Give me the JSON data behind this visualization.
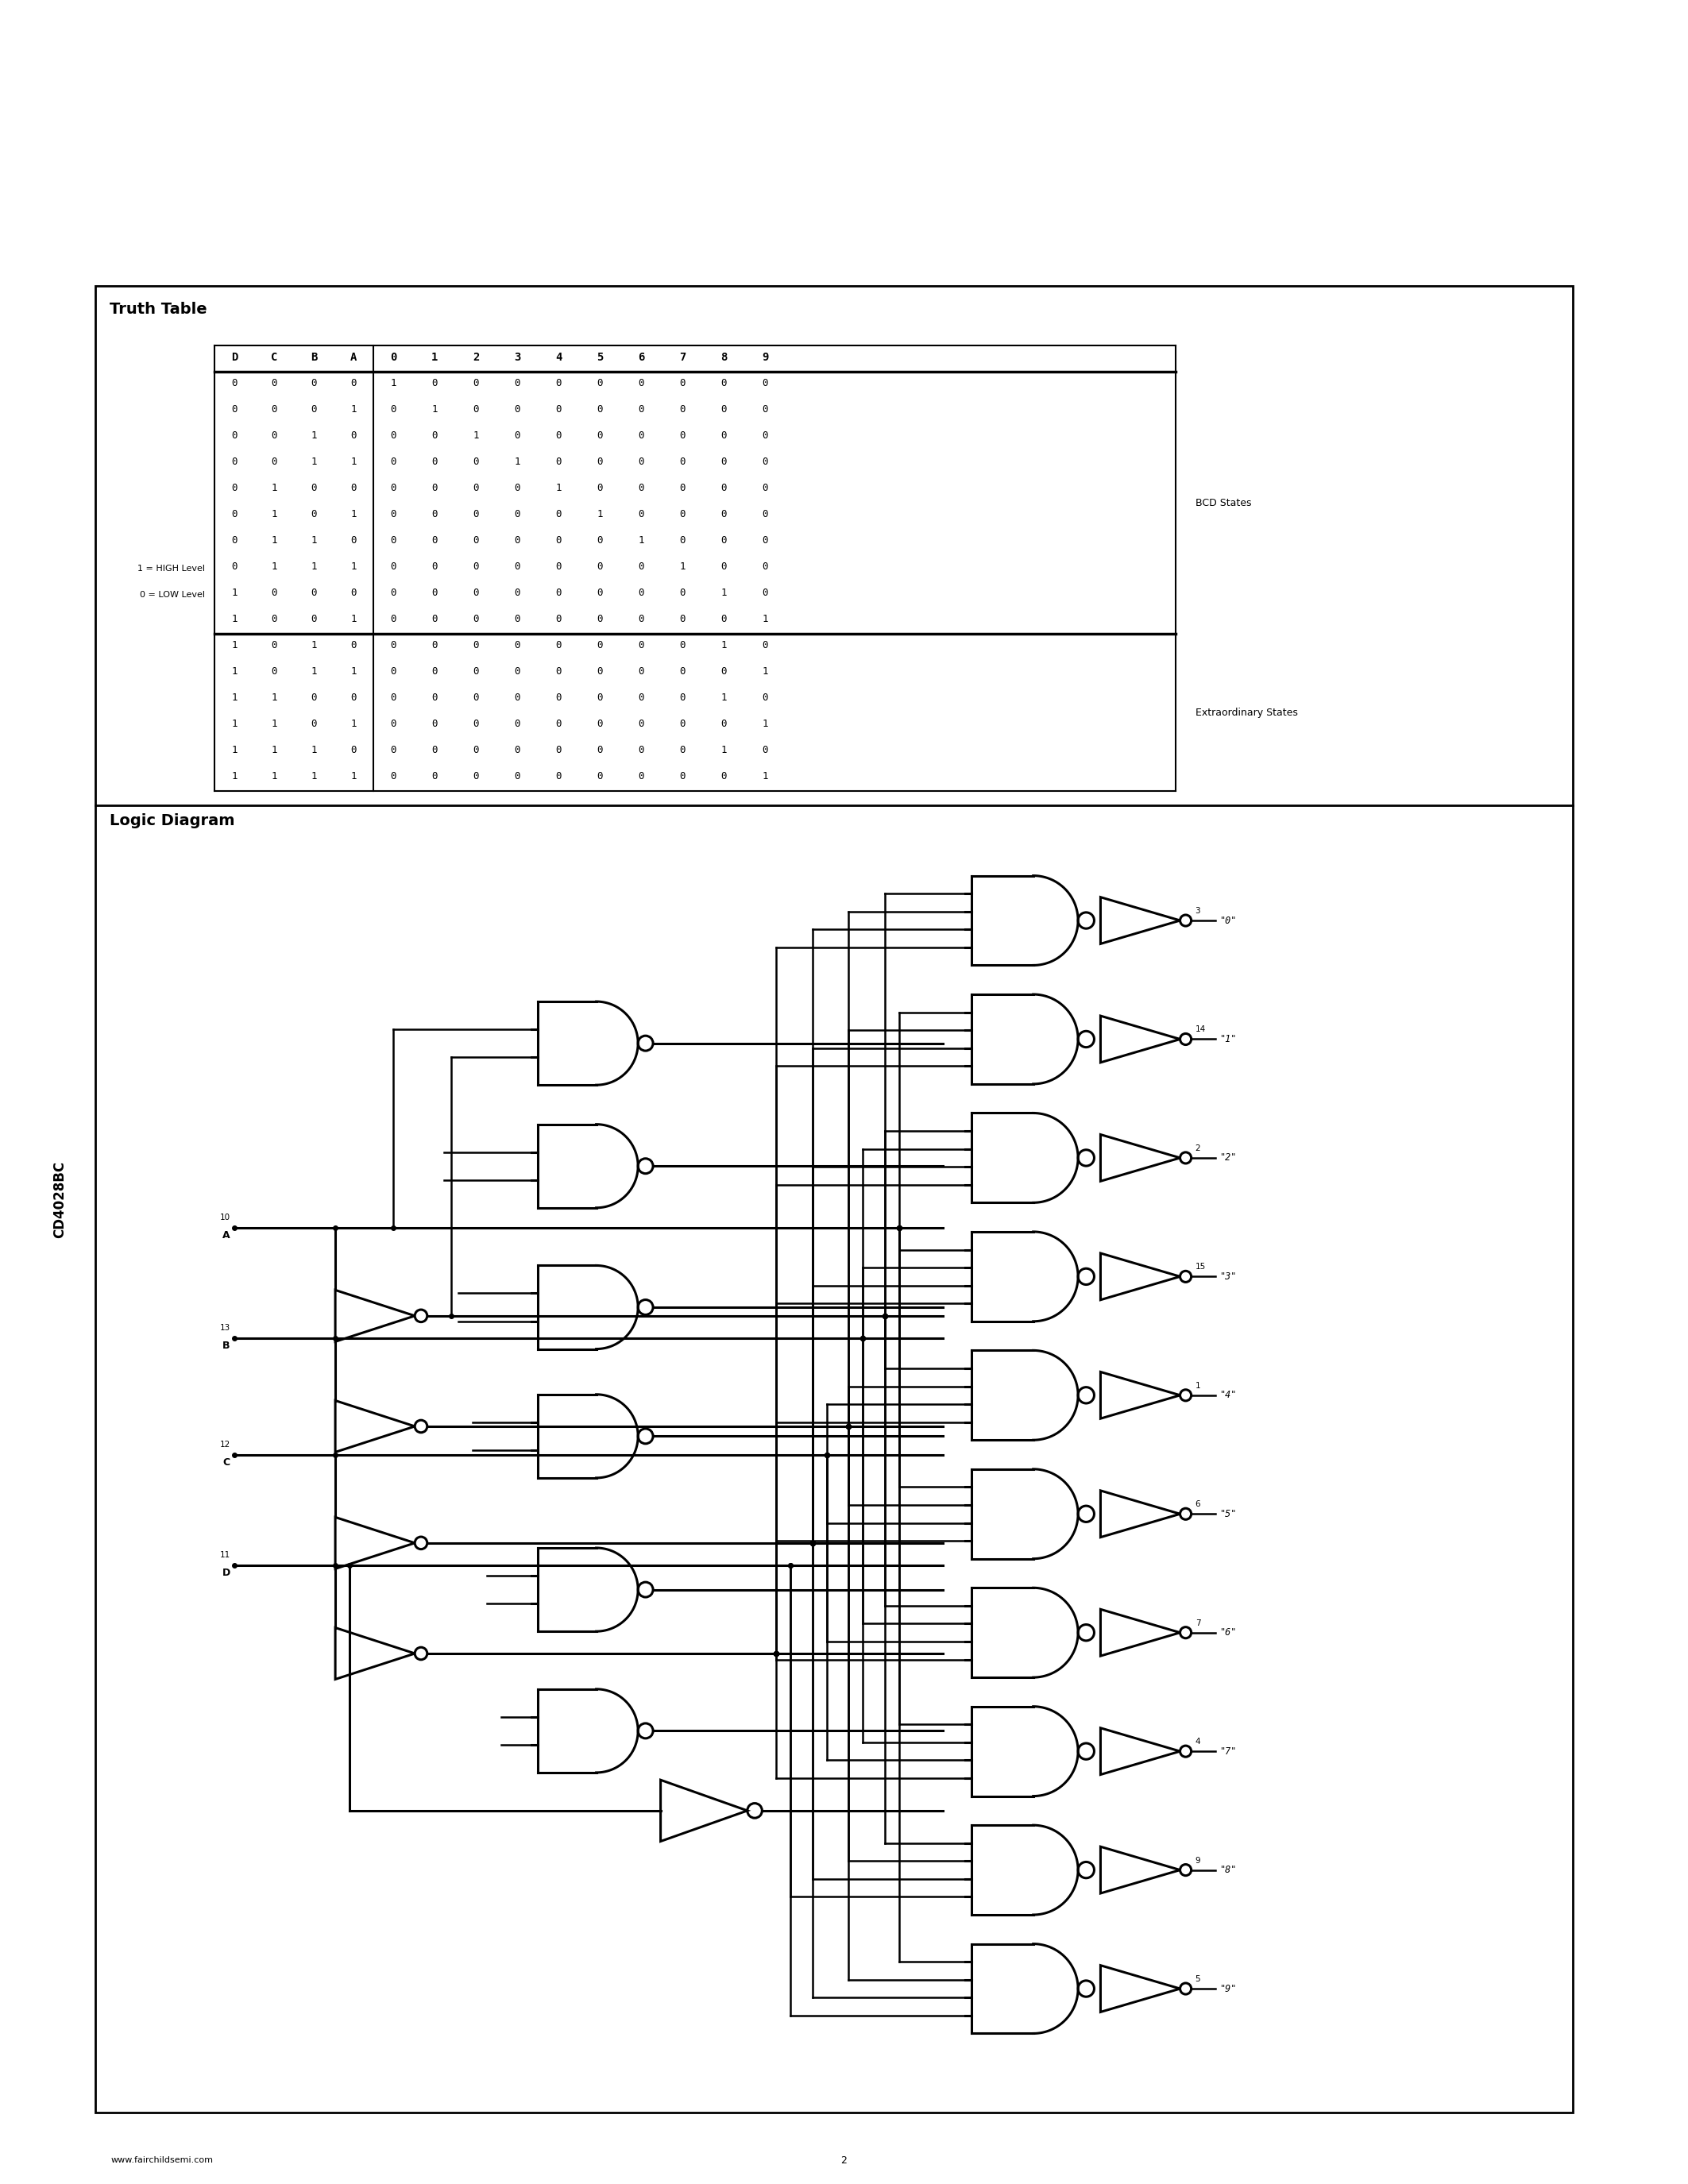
{
  "page_title": "CD4028BC",
  "footer_url": "www.fairchildsemi.com",
  "footer_page": "2",
  "truth_table_title": "Truth Table",
  "logic_diagram_title": "Logic Diagram",
  "col_headers": [
    "D",
    "C",
    "B",
    "A",
    "0",
    "1",
    "2",
    "3",
    "4",
    "5",
    "6",
    "7",
    "8",
    "9"
  ],
  "bcd_rows": [
    [
      0,
      0,
      0,
      0,
      1,
      0,
      0,
      0,
      0,
      0,
      0,
      0,
      0,
      0
    ],
    [
      0,
      0,
      0,
      1,
      0,
      1,
      0,
      0,
      0,
      0,
      0,
      0,
      0,
      0
    ],
    [
      0,
      0,
      1,
      0,
      0,
      0,
      1,
      0,
      0,
      0,
      0,
      0,
      0,
      0
    ],
    [
      0,
      0,
      1,
      1,
      0,
      0,
      0,
      1,
      0,
      0,
      0,
      0,
      0,
      0
    ],
    [
      0,
      1,
      0,
      0,
      0,
      0,
      0,
      0,
      1,
      0,
      0,
      0,
      0,
      0
    ],
    [
      0,
      1,
      0,
      1,
      0,
      0,
      0,
      0,
      0,
      1,
      0,
      0,
      0,
      0
    ],
    [
      0,
      1,
      1,
      0,
      0,
      0,
      0,
      0,
      0,
      0,
      1,
      0,
      0,
      0
    ],
    [
      0,
      1,
      1,
      1,
      0,
      0,
      0,
      0,
      0,
      0,
      0,
      1,
      0,
      0
    ],
    [
      1,
      0,
      0,
      0,
      0,
      0,
      0,
      0,
      0,
      0,
      0,
      0,
      1,
      0
    ],
    [
      1,
      0,
      0,
      1,
      0,
      0,
      0,
      0,
      0,
      0,
      0,
      0,
      0,
      1
    ]
  ],
  "ext_rows": [
    [
      1,
      0,
      1,
      0,
      0,
      0,
      0,
      0,
      0,
      0,
      0,
      0,
      1,
      0
    ],
    [
      1,
      0,
      1,
      1,
      0,
      0,
      0,
      0,
      0,
      0,
      0,
      0,
      0,
      1
    ],
    [
      1,
      1,
      0,
      0,
      0,
      0,
      0,
      0,
      0,
      0,
      0,
      0,
      1,
      0
    ],
    [
      1,
      1,
      0,
      1,
      0,
      0,
      0,
      0,
      0,
      0,
      0,
      0,
      0,
      1
    ],
    [
      1,
      1,
      1,
      0,
      0,
      0,
      0,
      0,
      0,
      0,
      0,
      0,
      1,
      0
    ],
    [
      1,
      1,
      1,
      1,
      0,
      0,
      0,
      0,
      0,
      0,
      0,
      0,
      0,
      1
    ]
  ],
  "label_1": "1 = HIGH Level",
  "label_0": "0 = LOW Level",
  "bcd_states_label": "BCD States",
  "ext_states_label": "Extraordinary States",
  "output_labels": [
    [
      "3",
      "\"0\""
    ],
    [
      "14",
      "\"1\""
    ],
    [
      "2",
      "\"2\""
    ],
    [
      "15",
      "\"3\""
    ],
    [
      "1",
      "\"4\""
    ],
    [
      "6",
      "\"5\""
    ],
    [
      "7",
      "\"6\""
    ],
    [
      "4",
      "\"7\""
    ],
    [
      "9",
      "\"8\""
    ],
    [
      "5",
      "\"9\""
    ]
  ],
  "bg_color": "#ffffff",
  "text_color": "#000000"
}
